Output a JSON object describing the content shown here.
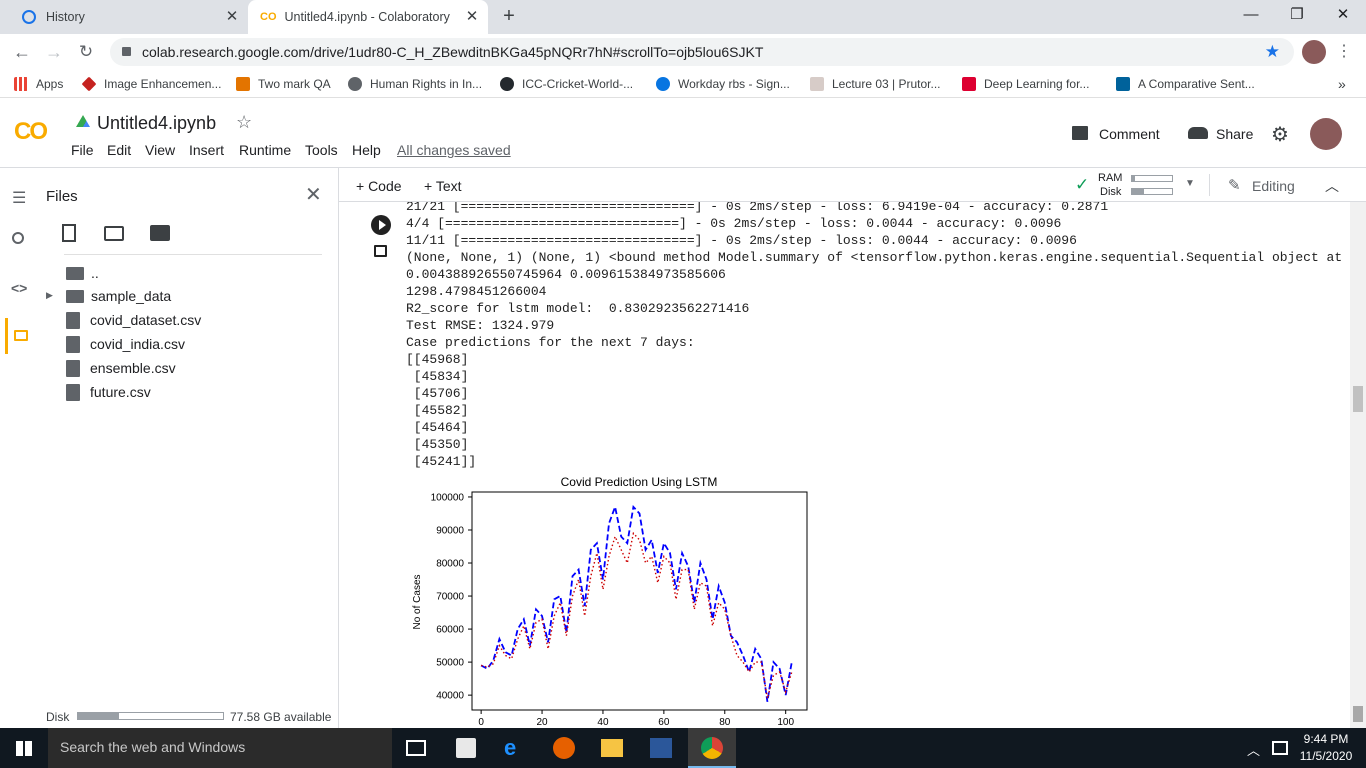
{
  "browser": {
    "tabs": [
      {
        "label": "History",
        "active": false
      },
      {
        "label": "Untitled4.ipynb - Colaboratory",
        "active": true
      }
    ],
    "url": "colab.research.google.com/drive/1udr80-C_H_ZBewditnBKGa45pNQRr7hN#scrollTo=ojb5lou6SJKT",
    "bookmarks": [
      "Apps",
      "Image Enhancemen...",
      "Two mark QA",
      "Human Rights in In...",
      "ICC-Cricket-World-...",
      "Workday rbs - Sign...",
      "Lecture 03 | Prutor...",
      "Deep Learning for...",
      "A Comparative Sent..."
    ],
    "bookmarks_more": "»"
  },
  "colab": {
    "logo": "CO",
    "notebook_title": "Untitled4.ipynb",
    "menu": [
      "File",
      "Edit",
      "View",
      "Insert",
      "Runtime",
      "Tools",
      "Help"
    ],
    "save_status": "All changes saved",
    "comment_label": "Comment",
    "share_label": "Share",
    "add_code": "+ Code",
    "add_text": "+ Text",
    "ram_label": "RAM",
    "disk_label": "Disk",
    "editing_label": "Editing",
    "accent_color": "#f9ab00"
  },
  "files_panel": {
    "title": "Files",
    "items": [
      {
        "name": "..",
        "type": "up"
      },
      {
        "name": "sample_data",
        "type": "folder"
      },
      {
        "name": "covid_dataset.csv",
        "type": "file"
      },
      {
        "name": "covid_india.csv",
        "type": "file"
      },
      {
        "name": "ensemble.csv",
        "type": "file"
      },
      {
        "name": "future.csv",
        "type": "file"
      }
    ],
    "disk_label": "Disk",
    "disk_available": "77.58 GB available",
    "disk_used_fraction": 0.28
  },
  "output": {
    "lines": [
      "21/21 [==============================] - 0s 2ms/step - loss: 6.9419e-04 - accuracy: 0.2871",
      "4/4 [==============================] - 0s 2ms/step - loss: 0.0044 - accuracy: 0.0096",
      "11/11 [==============================] - 0s 2ms/step - loss: 0.0044 - accuracy: 0.0096",
      "(None, None, 1) (None, 1) <bound method Model.summary of <tensorflow.python.keras.engine.sequential.Sequential object at",
      "0.004388926550745964 0.009615384973585606",
      "1298.4798451266004",
      "R2_score for lstm model:  0.8302923562271416",
      "Test RMSE: 1324.979",
      "Case predictions for the next 7 days:",
      "[[45968]",
      " [45834]",
      " [45706]",
      " [45582]",
      " [45464]",
      " [45350]",
      " [45241]]"
    ]
  },
  "chart_data": {
    "type": "line",
    "title": "Covid Prediction Using LSTM",
    "xlabel": "",
    "ylabel": "No of Cases",
    "xlim": [
      -3,
      107
    ],
    "ylim": [
      35500,
      101500
    ],
    "xticks": [
      0,
      20,
      40,
      60,
      80,
      100
    ],
    "yticks": [
      40000,
      50000,
      60000,
      70000,
      80000,
      90000,
      100000
    ],
    "xtick_labels": [
      "0",
      "20",
      "40",
      "60",
      "80",
      "100"
    ],
    "ytick_labels": [
      "40000",
      "50000",
      "60000",
      "70000",
      "80000",
      "90000",
      "100000"
    ],
    "grid": false,
    "legend": "none",
    "series": [
      {
        "color": "#0000ff",
        "style": "dashed",
        "x": [
          0,
          2,
          4,
          6,
          8,
          10,
          12,
          14,
          16,
          18,
          20,
          22,
          24,
          26,
          28,
          30,
          32,
          34,
          36,
          38,
          40,
          42,
          44,
          46,
          48,
          50,
          52,
          54,
          56,
          58,
          60,
          62,
          64,
          66,
          68,
          70,
          72,
          74,
          76,
          78,
          80,
          82,
          84,
          86,
          88,
          90,
          92,
          94,
          96,
          98,
          100,
          102
        ],
        "y": [
          49000,
          48000,
          50500,
          57000,
          53000,
          52000,
          60000,
          63000,
          55000,
          66000,
          64000,
          56000,
          69000,
          70000,
          59000,
          76000,
          78000,
          67000,
          84000,
          86000,
          75000,
          92000,
          97000,
          88000,
          86000,
          97000,
          95000,
          84000,
          87000,
          77000,
          86000,
          83000,
          72000,
          83000,
          79000,
          68000,
          80000,
          75000,
          63000,
          73000,
          68000,
          58000,
          56000,
          52000,
          47000,
          54000,
          51000,
          38000,
          50000,
          48000,
          40000,
          50000
        ]
      },
      {
        "color": "#cc0000",
        "style": "dotted",
        "x": [
          0,
          2,
          4,
          6,
          8,
          10,
          12,
          14,
          16,
          18,
          20,
          22,
          24,
          26,
          28,
          30,
          32,
          34,
          36,
          38,
          40,
          42,
          44,
          46,
          48,
          50,
          52,
          54,
          56,
          58,
          60,
          62,
          64,
          66,
          68,
          70,
          72,
          74,
          76,
          78,
          80,
          82,
          84,
          86,
          88,
          90,
          92,
          94,
          96,
          98,
          100,
          102
        ],
        "y": [
          49000,
          48500,
          49500,
          55000,
          52000,
          51000,
          57000,
          61000,
          54000,
          62000,
          63000,
          54000,
          64000,
          68000,
          58000,
          70000,
          75000,
          64000,
          76000,
          83000,
          72000,
          82000,
          88000,
          84000,
          80000,
          89000,
          87000,
          80000,
          82000,
          74000,
          82000,
          80000,
          69000,
          78000,
          78000,
          66000,
          74000,
          73000,
          61000,
          68000,
          66000,
          58000,
          52000,
          50000,
          47000,
          50000,
          50000,
          39000,
          46000,
          47000,
          41000,
          47000
        ]
      }
    ]
  },
  "taskbar": {
    "search_placeholder": "Search the web and Windows",
    "time": "9:44 PM",
    "date": "11/5/2020"
  }
}
